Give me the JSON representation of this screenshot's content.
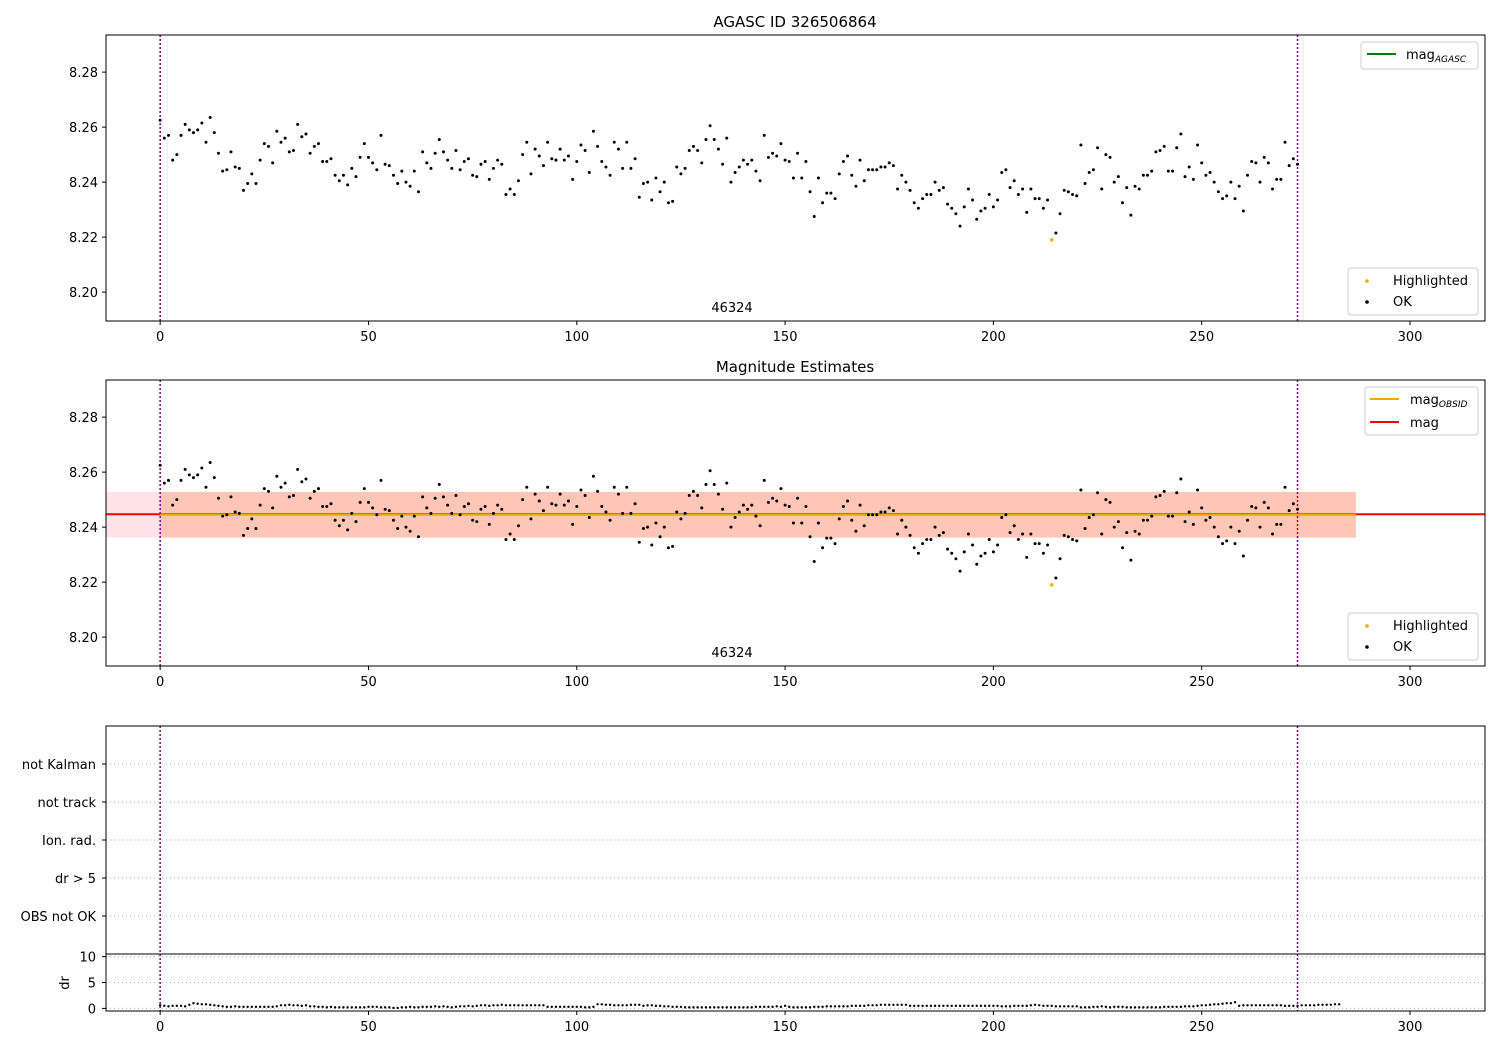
{
  "chart_data": [
    {
      "type": "scatter",
      "title": "AGASC ID 326506864",
      "annotation": "46324",
      "xlim": [
        -13,
        318
      ],
      "ylim": [
        8.1895,
        8.2935
      ],
      "xticks": [
        0,
        50,
        100,
        150,
        200,
        250,
        300
      ],
      "yticks": [
        8.2,
        8.22,
        8.24,
        8.26,
        8.28
      ],
      "ytick_labels": [
        "8.20",
        "8.22",
        "8.24",
        "8.26",
        "8.28"
      ],
      "vlines": [
        0,
        273
      ],
      "lines": [
        {
          "name": "mag",
          "subscript": "AGASC",
          "color": "#008000"
        }
      ],
      "legend_top": "top-right",
      "legend_bottom": "bottom-right"
    },
    {
      "type": "scatter",
      "title": "Magnitude Estimates",
      "annotation": "46324",
      "xlim": [
        -13,
        318
      ],
      "ylim": [
        8.1895,
        8.2935
      ],
      "xticks": [
        0,
        50,
        100,
        150,
        200,
        250,
        300
      ],
      "yticks": [
        8.2,
        8.22,
        8.24,
        8.26,
        8.28
      ],
      "ytick_labels": [
        "8.20",
        "8.22",
        "8.24",
        "8.26",
        "8.28"
      ],
      "vlines": [
        0,
        273
      ],
      "lines": [
        {
          "name": "mag",
          "subscript": "OBSID",
          "color": "#ffa500",
          "value": 8.2445,
          "x_range": [
            0,
            287
          ]
        },
        {
          "name": "mag",
          "subscript": "",
          "color": "#ff0000",
          "value": 8.2447,
          "x_range": [
            -13,
            318
          ]
        }
      ],
      "bands": [
        {
          "color": "#ffc0cb",
          "y_range": [
            8.2362,
            8.2528
          ],
          "x_range": [
            -13,
            287
          ]
        },
        {
          "color": "#ffa07a",
          "y_range": [
            8.2362,
            8.2528
          ],
          "x_range": [
            0,
            287
          ]
        }
      ],
      "legend_top": "top-right",
      "legend_bottom": "bottom-right"
    },
    {
      "type": "scatter",
      "categories": [
        "not Kalman",
        "not track",
        "Ion. rad.",
        "dr > 5",
        "OBS not OK"
      ],
      "xlim": [
        -13,
        318
      ],
      "vlines": [
        0,
        273
      ],
      "grid": true
    },
    {
      "type": "scatter",
      "ylabel": "dr",
      "xlim": [
        -13,
        318
      ],
      "ylim": [
        -0.5,
        10.5
      ],
      "yticks": [
        0,
        5,
        10
      ],
      "ytick_labels": [
        "0",
        "5",
        "10"
      ],
      "xticks": [
        0,
        50,
        100,
        150,
        200,
        250,
        300
      ],
      "vlines": [
        0,
        273
      ],
      "grid": true
    }
  ],
  "series": {
    "ok": {
      "name": "OK",
      "color": "#000000",
      "values": [
        8.2625,
        8.256,
        8.257,
        8.248,
        8.25,
        8.257,
        8.261,
        8.259,
        8.258,
        8.259,
        8.2615,
        8.2545,
        8.2635,
        8.258,
        8.2505,
        8.244,
        8.2445,
        8.251,
        8.2455,
        8.245,
        8.237,
        8.2395,
        8.243,
        8.2395,
        8.248,
        8.254,
        8.253,
        8.247,
        8.2585,
        8.2545,
        8.256,
        8.251,
        8.2515,
        8.261,
        8.2565,
        8.2575,
        8.2505,
        8.253,
        8.254,
        8.2475,
        8.2475,
        8.2485,
        8.2425,
        8.2405,
        8.2425,
        8.239,
        8.245,
        8.242,
        8.249,
        8.254,
        8.249,
        8.247,
        8.2445,
        8.257,
        8.2465,
        8.246,
        8.2425,
        8.2395,
        8.244,
        8.24,
        8.2385,
        8.244,
        8.2365,
        8.251,
        8.247,
        8.245,
        8.2505,
        8.2555,
        8.251,
        8.248,
        8.245,
        8.2515,
        8.2445,
        8.2475,
        8.2485,
        8.2425,
        8.242,
        8.2465,
        8.2475,
        8.241,
        8.245,
        8.248,
        8.2465,
        8.2355,
        8.2375,
        8.2355,
        8.2405,
        8.25,
        8.2545,
        8.243,
        8.252,
        8.2495,
        8.246,
        8.2545,
        8.2485,
        8.248,
        8.252,
        8.248,
        8.2495,
        8.241,
        8.2475,
        8.2535,
        8.2515,
        8.2435,
        8.2585,
        8.253,
        8.2475,
        8.2455,
        8.2425,
        8.2545,
        8.252,
        8.245,
        8.2545,
        8.245,
        8.2485,
        8.2345,
        8.2395,
        8.24,
        8.2335,
        8.2415,
        8.2365,
        8.24,
        8.2325,
        8.233,
        8.2455,
        8.243,
        8.245,
        8.2515,
        8.253,
        8.2515,
        8.247,
        8.2555,
        8.2605,
        8.2555,
        8.252,
        8.2465,
        8.256,
        8.24,
        8.2435,
        8.2455,
        8.248,
        8.2465,
        8.248,
        8.244,
        8.2405,
        8.257,
        8.249,
        8.2505,
        8.2495,
        8.254,
        8.248,
        8.2475,
        8.2415,
        8.2505,
        8.2415,
        8.2475,
        8.2365,
        8.2275,
        8.2415,
        8.2325,
        8.236,
        8.236,
        8.234,
        8.243,
        8.2475,
        8.2495,
        8.2425,
        8.2385,
        8.248,
        8.2405,
        8.2445,
        8.2445,
        8.2445,
        8.2455,
        8.2455,
        8.247,
        8.246,
        8.2375,
        8.2425,
        8.24,
        8.237,
        8.2325,
        8.2305,
        8.234,
        8.2355,
        8.2355,
        8.24,
        8.237,
        8.238,
        8.232,
        8.2305,
        8.2285,
        8.224,
        8.231,
        8.2375,
        8.2335,
        8.2265,
        8.2295,
        8.2305,
        8.2355,
        8.231,
        8.2335,
        8.2435,
        8.2445,
        8.238,
        8.2405,
        8.2355,
        8.2375,
        8.229,
        8.2375,
        8.234,
        8.234,
        8.2305,
        8.2335,
        8.222,
        8.2215,
        8.2285,
        8.237,
        8.2365,
        8.2355,
        8.235,
        8.2535,
        8.2395,
        8.2435,
        8.2445,
        8.2525,
        8.2375,
        8.25,
        8.249,
        8.24,
        8.242,
        8.2325,
        8.238,
        8.228,
        8.2385,
        8.2375,
        8.2425,
        8.2425,
        8.244,
        8.251,
        8.2515,
        8.253,
        8.244,
        8.244,
        8.2525,
        8.2575,
        8.242,
        8.2455,
        8.241,
        8.2535,
        8.247,
        8.2425,
        8.2435,
        8.24,
        8.2365,
        8.234,
        8.235,
        8.24,
        8.234,
        8.2385,
        8.2295,
        8.2425,
        8.2475,
        8.247,
        8.24,
        8.249,
        8.247,
        8.2375,
        8.241,
        8.241,
        8.2545,
        8.246,
        8.2485,
        8.2465
      ]
    },
    "highlighted": {
      "name": "Highlighted",
      "color": "#ffa500",
      "points": [
        {
          "x": 214,
          "y": 8.219
        }
      ]
    },
    "dr": {
      "name": "dr",
      "color": "#000000",
      "values": [
        0.6,
        0.5,
        0.4,
        0.5,
        0.5,
        0.5,
        0.4,
        0.7,
        1.0,
        0.9,
        0.8,
        0.8,
        0.7,
        0.6,
        0.5,
        0.4,
        0.3,
        0.3,
        0.4,
        0.3,
        0.3,
        0.3,
        0.3,
        0.3,
        0.3,
        0.3,
        0.3,
        0.3,
        0.4,
        0.6,
        0.6,
        0.7,
        0.6,
        0.6,
        0.5,
        0.6,
        0.4,
        0.4,
        0.3,
        0.3,
        0.2,
        0.3,
        0.2,
        0.2,
        0.2,
        0.2,
        0.2,
        0.2,
        0.2,
        0.2,
        0.3,
        0.3,
        0.3,
        0.2,
        0.2,
        0.2,
        0.1,
        0.1,
        0.2,
        0.2,
        0.3,
        0.2,
        0.2,
        0.3,
        0.3,
        0.3,
        0.4,
        0.3,
        0.4,
        0.3,
        0.2,
        0.3,
        0.4,
        0.4,
        0.5,
        0.4,
        0.5,
        0.6,
        0.6,
        0.5,
        0.6,
        0.6,
        0.7,
        0.6,
        0.6,
        0.6,
        0.6,
        0.6,
        0.6,
        0.6,
        0.6,
        0.6,
        0.6,
        0.3,
        0.3,
        0.3,
        0.3,
        0.3,
        0.3,
        0.3,
        0.3,
        0.3,
        0.2,
        0.2,
        0.3,
        0.8,
        0.8,
        0.7,
        0.7,
        0.6,
        0.6,
        0.6,
        0.6,
        0.7,
        0.7,
        0.7,
        0.5,
        0.6,
        0.6,
        0.5,
        0.5,
        0.4,
        0.4,
        0.3,
        0.3,
        0.3,
        0.2,
        0.2,
        0.2,
        0.2,
        0.2,
        0.2,
        0.2,
        0.2,
        0.2,
        0.2,
        0.2,
        0.2,
        0.2,
        0.2,
        0.2,
        0.2,
        0.2,
        0.3,
        0.3,
        0.3,
        0.3,
        0.3,
        0.4,
        0.3,
        0.5,
        0.3,
        0.2,
        0.2,
        0.2,
        0.2,
        0.2,
        0.3,
        0.3,
        0.3,
        0.4,
        0.4,
        0.4,
        0.4,
        0.4,
        0.4,
        0.5,
        0.5,
        0.5,
        0.5,
        0.6,
        0.6,
        0.6,
        0.7,
        0.7,
        0.7,
        0.7,
        0.7,
        0.7,
        0.7,
        0.5,
        0.5,
        0.5,
        0.5,
        0.5,
        0.5,
        0.5,
        0.5,
        0.5,
        0.5,
        0.5,
        0.5,
        0.5,
        0.5,
        0.5,
        0.5,
        0.5,
        0.5,
        0.5,
        0.5,
        0.5,
        0.5,
        0.4,
        0.4,
        0.4,
        0.5,
        0.5,
        0.5,
        0.5,
        0.6,
        0.7,
        0.6,
        0.5,
        0.5,
        0.5,
        0.4,
        0.4,
        0.4,
        0.4,
        0.4,
        0.4,
        0.2,
        0.2,
        0.2,
        0.3,
        0.3,
        0.4,
        0.3,
        0.2,
        0.3,
        0.3,
        0.3,
        0.2,
        0.2,
        0.2,
        0.2,
        0.2,
        0.2,
        0.2,
        0.2,
        0.2,
        0.3,
        0.3,
        0.3,
        0.3,
        0.3,
        0.4,
        0.4,
        0.4,
        0.5,
        0.6,
        0.6,
        0.7,
        0.8,
        0.8,
        0.9,
        1.0,
        1.0,
        1.2,
        0.5,
        0.6,
        0.6,
        0.6,
        0.6,
        0.6,
        0.6,
        0.6,
        0.6,
        0.6,
        0.6,
        0.5,
        0.5,
        0.5,
        0.5,
        0.6,
        0.6,
        0.6,
        0.6,
        0.7,
        0.7,
        0.7,
        0.7,
        0.8,
        0.8
      ]
    }
  },
  "legend": {
    "mag": "mag",
    "agasc": "AGASC",
    "obsid": "OBSID",
    "highlighted": "Highlighted",
    "ok": "OK"
  }
}
